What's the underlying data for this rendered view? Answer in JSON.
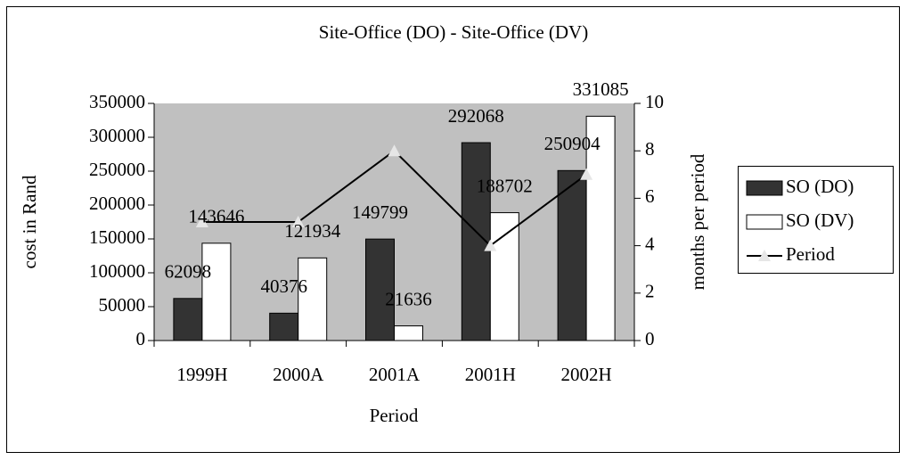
{
  "chart_data": {
    "type": "bar_line",
    "title": "Site-Office (DO) - Site-Office (DV)",
    "x_label": "Period",
    "y_label": "cost in Rand",
    "y2_label": "months per period",
    "categories": [
      "1999H",
      "2000A",
      "2001A",
      "2001H",
      "2002H"
    ],
    "series": [
      {
        "name": "SO (DO)",
        "color": "#333333",
        "type": "bar",
        "values": [
          62098,
          40376,
          149799,
          292068,
          250904
        ]
      },
      {
        "name": "SO (DV)",
        "color": "#ffffff",
        "type": "bar",
        "values": [
          143646,
          121934,
          21636,
          188702,
          331085
        ]
      },
      {
        "name": "Period",
        "color": "#000000",
        "marker_color": "#e6e6e6",
        "type": "line",
        "axis": "y2",
        "values": [
          5,
          5,
          8,
          4,
          7
        ]
      }
    ],
    "ylim": [
      0,
      350000
    ],
    "yticks": [
      0,
      50000,
      100000,
      150000,
      200000,
      250000,
      300000,
      350000
    ],
    "y2lim": [
      0,
      10
    ],
    "y2ticks": [
      0,
      2,
      4,
      6,
      8,
      10
    ],
    "plot_background": "#c0c0c0",
    "legend": "right"
  }
}
